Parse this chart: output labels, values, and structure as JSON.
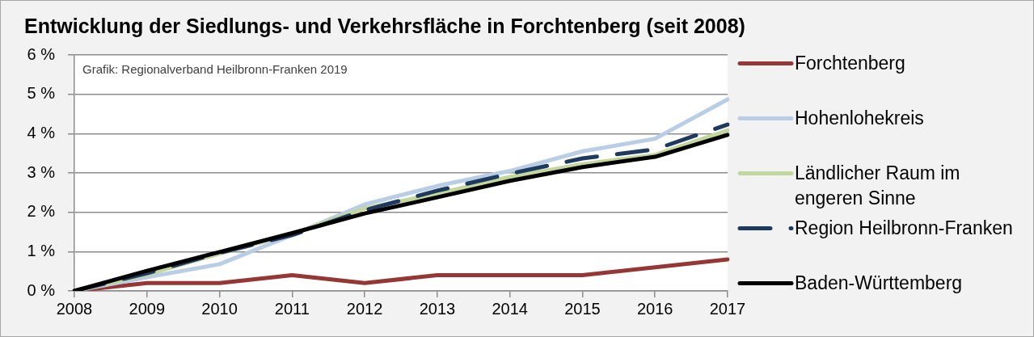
{
  "chart_data": {
    "type": "line",
    "title": "Entwicklung der Siedlungs- und Verkehrsfläche in Forchtenberg (seit 2008)",
    "annotations": [
      "Grafik: Regionalverband Heilbronn-Franken 2019"
    ],
    "categories": [
      "2008",
      "2009",
      "2010",
      "2011",
      "2012",
      "2013",
      "2014",
      "2015",
      "2016",
      "2017"
    ],
    "series": [
      {
        "name": "Forchtenberg",
        "color": "#953735",
        "values": [
          0,
          0.2,
          0.2,
          0.4,
          0.2,
          0.4,
          0.4,
          0.4,
          0.6,
          0.8
        ]
      },
      {
        "name": "Hohenlohekreis",
        "color": "#b9cde5",
        "values": [
          0,
          0.35,
          0.68,
          1.42,
          2.2,
          2.67,
          3.05,
          3.55,
          3.87,
          4.87
        ]
      },
      {
        "name": "Ländlicher Raum im engeren Sinne",
        "color": "#c3d69b",
        "values": [
          0,
          0.42,
          0.95,
          1.45,
          2.1,
          2.47,
          2.9,
          3.22,
          3.46,
          4.08
        ]
      },
      {
        "name": "Region Heilbronn-Franken",
        "color": "#1f3a5f",
        "line_style": "dashed",
        "values": [
          0,
          0.45,
          0.97,
          1.42,
          2.05,
          2.55,
          2.98,
          3.37,
          3.6,
          4.23
        ]
      },
      {
        "name": "Baden-Württemberg",
        "color": "#000000",
        "values": [
          0,
          0.51,
          0.99,
          1.47,
          1.97,
          2.38,
          2.8,
          3.15,
          3.41,
          3.97
        ]
      }
    ],
    "ylim": [
      0,
      6
    ],
    "yticks": [
      {
        "value": 0,
        "label": "0 %"
      },
      {
        "value": 1,
        "label": "1 %"
      },
      {
        "value": 2,
        "label": "2 %"
      },
      {
        "value": 3,
        "label": "3 %"
      },
      {
        "value": 4,
        "label": "4 %"
      },
      {
        "value": 5,
        "label": "5 %"
      },
      {
        "value": 6,
        "label": "6 %"
      }
    ],
    "grid": "y",
    "legend": "right",
    "marker": "none"
  }
}
